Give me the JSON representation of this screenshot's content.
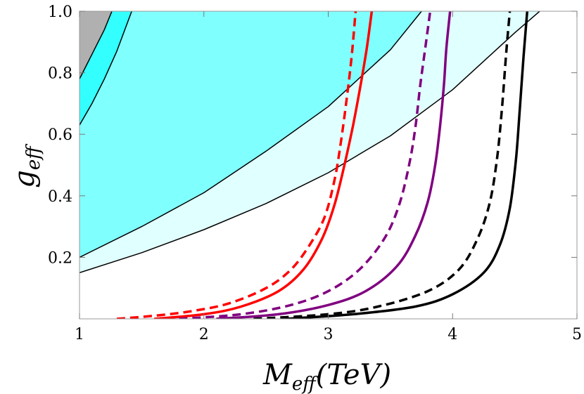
{
  "chart_data": {
    "type": "line",
    "xlabel": {
      "main": "M",
      "sub": "eff",
      "tail": "(TeV)"
    },
    "ylabel": {
      "main": "g",
      "sub": "eff"
    },
    "xlim": [
      1,
      5
    ],
    "ylim": [
      0,
      1
    ],
    "x_ticks": [
      "1",
      "2",
      "3",
      "4",
      "5"
    ],
    "y_ticks": [
      "0.2",
      "0.4",
      "0.6",
      "0.8",
      "1.0"
    ],
    "x_tick_values": [
      1,
      2,
      3,
      4,
      5
    ],
    "y_tick_values": [
      0.2,
      0.4,
      0.6,
      0.8,
      1.0
    ],
    "regions": [
      {
        "id": "light-cyan",
        "color": "#e0ffff",
        "lower": [
          [
            1,
            0.15
          ],
          [
            1.5,
            0.215
          ],
          [
            2,
            0.29
          ],
          [
            2.5,
            0.375
          ],
          [
            3,
            0.475
          ],
          [
            3.5,
            0.595
          ],
          [
            4,
            0.745
          ],
          [
            4.5,
            0.93
          ],
          [
            4.7,
            1.0
          ]
        ],
        "upper": [
          [
            1,
            0.2
          ],
          [
            1.5,
            0.3
          ],
          [
            2,
            0.41
          ],
          [
            2.5,
            0.545
          ],
          [
            3,
            0.69
          ],
          [
            3.5,
            0.875
          ],
          [
            3.75,
            1.0
          ]
        ]
      },
      {
        "id": "cyan",
        "color": "#80ffff",
        "lower": [
          [
            1,
            0.2
          ],
          [
            1.5,
            0.3
          ],
          [
            2,
            0.41
          ],
          [
            2.5,
            0.545
          ],
          [
            3,
            0.69
          ],
          [
            3.5,
            0.875
          ],
          [
            3.75,
            1.0
          ]
        ],
        "upper": [
          [
            1,
            0.63
          ],
          [
            1.1,
            0.7
          ],
          [
            1.2,
            0.78
          ],
          [
            1.3,
            0.87
          ],
          [
            1.42,
            1.0
          ]
        ]
      },
      {
        "id": "bright-cyan",
        "color": "#33ffff",
        "lower": [
          [
            1,
            0.63
          ],
          [
            1.1,
            0.7
          ],
          [
            1.2,
            0.78
          ],
          [
            1.3,
            0.87
          ],
          [
            1.42,
            1.0
          ]
        ],
        "upper": [
          [
            1,
            0.78
          ],
          [
            1.1,
            0.86
          ],
          [
            1.2,
            0.94
          ],
          [
            1.26,
            1.0
          ]
        ]
      },
      {
        "id": "gray",
        "color": "#b0b0b0",
        "lower": [
          [
            1,
            0.78
          ],
          [
            1.1,
            0.86
          ],
          [
            1.2,
            0.94
          ],
          [
            1.26,
            1.0
          ]
        ],
        "upper": [
          [
            1,
            1.0
          ],
          [
            1.26,
            1.0
          ]
        ]
      }
    ],
    "boundary_lines": [
      {
        "id": "boundary-1",
        "color": "#000000",
        "points": [
          [
            1,
            0.15
          ],
          [
            1.5,
            0.215
          ],
          [
            2,
            0.29
          ],
          [
            2.5,
            0.375
          ],
          [
            3,
            0.475
          ],
          [
            3.5,
            0.595
          ],
          [
            4,
            0.745
          ],
          [
            4.5,
            0.93
          ],
          [
            4.7,
            1.0
          ]
        ]
      },
      {
        "id": "boundary-2",
        "color": "#000000",
        "points": [
          [
            1,
            0.2
          ],
          [
            1.5,
            0.3
          ],
          [
            2,
            0.41
          ],
          [
            2.5,
            0.545
          ],
          [
            3,
            0.69
          ],
          [
            3.5,
            0.875
          ],
          [
            3.75,
            1.0
          ]
        ]
      },
      {
        "id": "boundary-3",
        "color": "#000000",
        "points": [
          [
            1,
            0.63
          ],
          [
            1.1,
            0.7
          ],
          [
            1.2,
            0.78
          ],
          [
            1.3,
            0.87
          ],
          [
            1.42,
            1.0
          ]
        ]
      },
      {
        "id": "boundary-4",
        "color": "#000000",
        "points": [
          [
            1,
            0.78
          ],
          [
            1.1,
            0.86
          ],
          [
            1.2,
            0.94
          ],
          [
            1.26,
            1.0
          ]
        ]
      }
    ],
    "series": [
      {
        "id": "red-dashed",
        "color": "#ff0000",
        "dashed": true,
        "points": [
          [
            1.3,
            0.0
          ],
          [
            1.6,
            0.01
          ],
          [
            1.9,
            0.025
          ],
          [
            2.2,
            0.05
          ],
          [
            2.5,
            0.1
          ],
          [
            2.7,
            0.16
          ],
          [
            2.85,
            0.24
          ],
          [
            2.97,
            0.33
          ],
          [
            3.05,
            0.45
          ],
          [
            3.1,
            0.57
          ],
          [
            3.15,
            0.72
          ],
          [
            3.19,
            0.86
          ],
          [
            3.22,
            1.0
          ]
        ]
      },
      {
        "id": "red-solid",
        "color": "#ff0000",
        "dashed": false,
        "points": [
          [
            1.6,
            0.0
          ],
          [
            2.0,
            0.015
          ],
          [
            2.3,
            0.04
          ],
          [
            2.6,
            0.09
          ],
          [
            2.8,
            0.16
          ],
          [
            2.95,
            0.26
          ],
          [
            3.05,
            0.37
          ],
          [
            3.13,
            0.5
          ],
          [
            3.2,
            0.63
          ],
          [
            3.26,
            0.76
          ],
          [
            3.31,
            0.88
          ],
          [
            3.35,
            1.0
          ]
        ]
      },
      {
        "id": "purple-dashed",
        "color": "#800080",
        "dashed": true,
        "points": [
          [
            1.8,
            0.0
          ],
          [
            2.3,
            0.015
          ],
          [
            2.7,
            0.045
          ],
          [
            3.0,
            0.09
          ],
          [
            3.25,
            0.16
          ],
          [
            3.45,
            0.26
          ],
          [
            3.57,
            0.37
          ],
          [
            3.65,
            0.5
          ],
          [
            3.7,
            0.62
          ],
          [
            3.74,
            0.76
          ],
          [
            3.78,
            0.88
          ],
          [
            3.82,
            1.0
          ]
        ]
      },
      {
        "id": "purple-solid",
        "color": "#800080",
        "dashed": false,
        "points": [
          [
            2.1,
            0.0
          ],
          [
            2.6,
            0.015
          ],
          [
            3.0,
            0.045
          ],
          [
            3.3,
            0.09
          ],
          [
            3.55,
            0.17
          ],
          [
            3.7,
            0.27
          ],
          [
            3.8,
            0.38
          ],
          [
            3.86,
            0.5
          ],
          [
            3.9,
            0.63
          ],
          [
            3.93,
            0.76
          ],
          [
            3.95,
            0.88
          ],
          [
            3.98,
            1.0
          ]
        ]
      },
      {
        "id": "black-dashed",
        "color": "#000000",
        "dashed": true,
        "points": [
          [
            2.4,
            0.0
          ],
          [
            3.0,
            0.015
          ],
          [
            3.4,
            0.04
          ],
          [
            3.8,
            0.09
          ],
          [
            4.05,
            0.16
          ],
          [
            4.2,
            0.26
          ],
          [
            4.3,
            0.38
          ],
          [
            4.36,
            0.53
          ],
          [
            4.4,
            0.7
          ],
          [
            4.43,
            0.86
          ],
          [
            4.46,
            1.0
          ]
        ]
      },
      {
        "id": "black-solid",
        "color": "#000000",
        "dashed": false,
        "points": [
          [
            2.65,
            0.0
          ],
          [
            3.2,
            0.015
          ],
          [
            3.7,
            0.04
          ],
          [
            4.0,
            0.08
          ],
          [
            4.25,
            0.15
          ],
          [
            4.38,
            0.24
          ],
          [
            4.46,
            0.36
          ],
          [
            4.51,
            0.52
          ],
          [
            4.54,
            0.68
          ],
          [
            4.57,
            0.85
          ],
          [
            4.6,
            1.0
          ]
        ]
      }
    ]
  }
}
